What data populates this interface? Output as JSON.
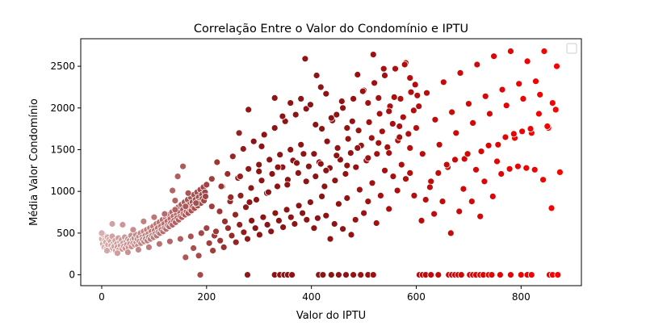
{
  "chart_data": {
    "type": "scatter",
    "title": "Correlação Entre o Valor do Condomínio e IPTU",
    "xlabel": "Valor do IPTU",
    "ylabel": "Média Valor Condomínio",
    "xlim": [
      -40,
      915
    ],
    "ylim": [
      -130,
      2830
    ],
    "xticks": [
      0,
      200,
      400,
      600,
      800
    ],
    "yticks": [
      0,
      500,
      1000,
      1500,
      2000,
      2500
    ],
    "grid": false,
    "legend": {
      "placement": "upper right",
      "entries": []
    },
    "color_scale": {
      "low": "#ffffff",
      "mid": "#8c1414",
      "high": "#ff0000",
      "marker_edge": "#ffffff"
    },
    "points": [
      [
        0,
        430
      ],
      [
        2,
        370
      ],
      [
        3,
        480
      ],
      [
        5,
        330
      ],
      [
        6,
        410
      ],
      [
        8,
        390
      ],
      [
        9,
        310
      ],
      [
        11,
        450
      ],
      [
        12,
        360
      ],
      [
        14,
        420
      ],
      [
        15,
        300
      ],
      [
        17,
        400
      ],
      [
        18,
        350
      ],
      [
        20,
        460
      ],
      [
        21,
        320
      ],
      [
        23,
        380
      ],
      [
        24,
        340
      ],
      [
        26,
        410
      ],
      [
        27,
        290
      ],
      [
        29,
        370
      ],
      [
        30,
        330
      ],
      [
        32,
        440
      ],
      [
        33,
        300
      ],
      [
        35,
        390
      ],
      [
        36,
        350
      ],
      [
        38,
        420
      ],
      [
        39,
        310
      ],
      [
        41,
        380
      ],
      [
        42,
        340
      ],
      [
        44,
        450
      ],
      [
        45,
        320
      ],
      [
        47,
        400
      ],
      [
        48,
        360
      ],
      [
        50,
        430
      ],
      [
        51,
        330
      ],
      [
        53,
        410
      ],
      [
        54,
        370
      ],
      [
        56,
        470
      ],
      [
        57,
        340
      ],
      [
        59,
        420
      ],
      [
        60,
        380
      ],
      [
        62,
        440
      ],
      [
        63,
        360
      ],
      [
        65,
        480
      ],
      [
        66,
        390
      ],
      [
        68,
        430
      ],
      [
        69,
        350
      ],
      [
        71,
        460
      ],
      [
        72,
        400
      ],
      [
        74,
        500
      ],
      [
        75,
        380
      ],
      [
        77,
        450
      ],
      [
        78,
        420
      ],
      [
        80,
        520
      ],
      [
        81,
        400
      ],
      [
        83,
        470
      ],
      [
        84,
        430
      ],
      [
        86,
        540
      ],
      [
        87,
        410
      ],
      [
        89,
        490
      ],
      [
        90,
        450
      ],
      [
        92,
        560
      ],
      [
        93,
        430
      ],
      [
        95,
        520
      ],
      [
        96,
        470
      ],
      [
        98,
        580
      ],
      [
        99,
        450
      ],
      [
        101,
        530
      ],
      [
        102,
        490
      ],
      [
        104,
        610
      ],
      [
        105,
        470
      ],
      [
        107,
        560
      ],
      [
        108,
        510
      ],
      [
        110,
        630
      ],
      [
        111,
        500
      ],
      [
        113,
        580
      ],
      [
        114,
        540
      ],
      [
        116,
        660
      ],
      [
        117,
        520
      ],
      [
        119,
        610
      ],
      [
        120,
        560
      ],
      [
        122,
        690
      ],
      [
        123,
        550
      ],
      [
        125,
        640
      ],
      [
        126,
        590
      ],
      [
        128,
        720
      ],
      [
        129,
        580
      ],
      [
        131,
        670
      ],
      [
        132,
        620
      ],
      [
        134,
        750
      ],
      [
        135,
        600
      ],
      [
        137,
        700
      ],
      [
        138,
        650
      ],
      [
        140,
        780
      ],
      [
        141,
        630
      ],
      [
        143,
        720
      ],
      [
        144,
        680
      ],
      [
        146,
        810
      ],
      [
        147,
        660
      ],
      [
        149,
        750
      ],
      [
        150,
        700
      ],
      [
        152,
        840
      ],
      [
        153,
        690
      ],
      [
        155,
        780
      ],
      [
        156,
        730
      ],
      [
        158,
        870
      ],
      [
        159,
        720
      ],
      [
        161,
        810
      ],
      [
        162,
        760
      ],
      [
        164,
        900
      ],
      [
        165,
        740
      ],
      [
        167,
        840
      ],
      [
        168,
        790
      ],
      [
        170,
        930
      ],
      [
        171,
        770
      ],
      [
        173,
        870
      ],
      [
        174,
        820
      ],
      [
        176,
        960
      ],
      [
        177,
        800
      ],
      [
        179,
        900
      ],
      [
        180,
        850
      ],
      [
        182,
        990
      ],
      [
        183,
        830
      ],
      [
        185,
        930
      ],
      [
        186,
        880
      ],
      [
        188,
        1020
      ],
      [
        189,
        860
      ],
      [
        191,
        960
      ],
      [
        192,
        910
      ],
      [
        194,
        1050
      ],
      [
        195,
        890
      ],
      [
        197,
        990
      ],
      [
        198,
        940
      ],
      [
        200,
        1080
      ],
      [
        0,
        500
      ],
      [
        10,
        290
      ],
      [
        20,
        610
      ],
      [
        30,
        260
      ],
      [
        40,
        600
      ],
      [
        50,
        270
      ],
      [
        60,
        540
      ],
      [
        70,
        300
      ],
      [
        80,
        640
      ],
      [
        90,
        330
      ],
      [
        100,
        690
      ],
      [
        110,
        370
      ],
      [
        120,
        730
      ],
      [
        130,
        400
      ],
      [
        140,
        780
      ],
      [
        150,
        430
      ],
      [
        160,
        820
      ],
      [
        170,
        460
      ],
      [
        180,
        860
      ],
      [
        190,
        500
      ],
      [
        155,
        1300
      ],
      [
        160,
        210
      ],
      [
        175,
        320
      ],
      [
        185,
        230
      ],
      [
        188,
        0
      ],
      [
        200,
        560
      ],
      [
        135,
        1010
      ],
      [
        140,
        890
      ],
      [
        145,
        1180
      ],
      [
        165,
        980
      ],
      [
        210,
        1150
      ],
      [
        215,
        470
      ],
      [
        220,
        1350
      ],
      [
        225,
        760
      ],
      [
        230,
        1060
      ],
      [
        235,
        640
      ],
      [
        240,
        1210
      ],
      [
        245,
        880
      ],
      [
        250,
        1420
      ],
      [
        255,
        720
      ],
      [
        260,
        1160
      ],
      [
        265,
        950
      ],
      [
        270,
        1510
      ],
      [
        275,
        810
      ],
      [
        280,
        1270
      ],
      [
        285,
        1040
      ],
      [
        290,
        1600
      ],
      [
        295,
        900
      ],
      [
        300,
        1320
      ],
      [
        305,
        1130
      ],
      [
        310,
        1680
      ],
      [
        315,
        980
      ],
      [
        320,
        1380
      ],
      [
        325,
        1210
      ],
      [
        330,
        1760
      ],
      [
        335,
        1060
      ],
      [
        340,
        1440
      ],
      [
        345,
        1290
      ],
      [
        350,
        1840
      ],
      [
        355,
        1140
      ],
      [
        360,
        1500
      ],
      [
        365,
        1370
      ],
      [
        370,
        1920
      ],
      [
        375,
        1220
      ],
      [
        380,
        1560
      ],
      [
        385,
        1450
      ],
      [
        390,
        1990
      ],
      [
        395,
        1300
      ],
      [
        205,
        380
      ],
      [
        212,
        290
      ],
      [
        218,
        520
      ],
      [
        226,
        410
      ],
      [
        233,
        330
      ],
      [
        241,
        560
      ],
      [
        248,
        470
      ],
      [
        256,
        390
      ],
      [
        263,
        600
      ],
      [
        271,
        510
      ],
      [
        278,
        430
      ],
      [
        286,
        650
      ],
      [
        293,
        560
      ],
      [
        301,
        480
      ],
      [
        308,
        690
      ],
      [
        316,
        600
      ],
      [
        323,
        520
      ],
      [
        331,
        740
      ],
      [
        338,
        650
      ],
      [
        346,
        570
      ],
      [
        353,
        780
      ],
      [
        361,
        690
      ],
      [
        368,
        610
      ],
      [
        376,
        830
      ],
      [
        383,
        740
      ],
      [
        391,
        660
      ],
      [
        398,
        870
      ],
      [
        262,
        1700
      ],
      [
        280,
        1980
      ],
      [
        305,
        1540
      ],
      [
        330,
        2120
      ],
      [
        345,
        1900
      ],
      [
        360,
        2060
      ],
      [
        380,
        2110
      ],
      [
        388,
        2590
      ],
      [
        398,
        2040
      ],
      [
        278,
        0
      ],
      [
        330,
        0
      ],
      [
        340,
        0
      ],
      [
        348,
        0
      ],
      [
        355,
        0
      ],
      [
        363,
        0
      ],
      [
        210,
        820
      ],
      [
        228,
        1060
      ],
      [
        246,
        930
      ],
      [
        264,
        1180
      ],
      [
        282,
        870
      ],
      [
        300,
        1240
      ],
      [
        318,
        990
      ],
      [
        336,
        1290
      ],
      [
        354,
        1080
      ],
      [
        372,
        1340
      ],
      [
        390,
        1120
      ],
      [
        405,
        1450
      ],
      [
        410,
        2390
      ],
      [
        415,
        1350
      ],
      [
        420,
        1750
      ],
      [
        425,
        1060
      ],
      [
        430,
        1600
      ],
      [
        435,
        1280
      ],
      [
        440,
        1850
      ],
      [
        445,
        1130
      ],
      [
        450,
        1520
      ],
      [
        455,
        1380
      ],
      [
        460,
        2000
      ],
      [
        465,
        1210
      ],
      [
        470,
        1630
      ],
      [
        475,
        1460
      ],
      [
        480,
        2110
      ],
      [
        485,
        1290
      ],
      [
        490,
        1730
      ],
      [
        495,
        1550
      ],
      [
        500,
        2210
      ],
      [
        505,
        1370
      ],
      [
        510,
        1830
      ],
      [
        515,
        1640
      ],
      [
        520,
        2300
      ],
      [
        525,
        1450
      ],
      [
        530,
        1930
      ],
      [
        535,
        1720
      ],
      [
        540,
        2390
      ],
      [
        545,
        1530
      ],
      [
        550,
        2020
      ],
      [
        555,
        1810
      ],
      [
        560,
        2470
      ],
      [
        565,
        1610
      ],
      [
        570,
        2110
      ],
      [
        575,
        1890
      ],
      [
        580,
        2540
      ],
      [
        585,
        1690
      ],
      [
        590,
        2190
      ],
      [
        595,
        1970
      ],
      [
        602,
        2150
      ],
      [
        408,
        1800
      ],
      [
        418,
        2250
      ],
      [
        428,
        2170
      ],
      [
        438,
        1880
      ],
      [
        448,
        1920
      ],
      [
        458,
        2080
      ],
      [
        468,
        1760
      ],
      [
        478,
        1840
      ],
      [
        488,
        2400
      ],
      [
        498,
        2200
      ],
      [
        508,
        2060
      ],
      [
        518,
        2640
      ],
      [
        528,
        2120
      ],
      [
        538,
        2470
      ],
      [
        548,
        1960
      ],
      [
        558,
        2130
      ],
      [
        568,
        1780
      ],
      [
        578,
        2520
      ],
      [
        588,
        2360
      ],
      [
        598,
        2280
      ],
      [
        405,
        560
      ],
      [
        412,
        680
      ],
      [
        420,
        940
      ],
      [
        428,
        710
      ],
      [
        436,
        430
      ],
      [
        444,
        610
      ],
      [
        452,
        850
      ],
      [
        460,
        550
      ],
      [
        468,
        920
      ],
      [
        476,
        480
      ],
      [
        484,
        660
      ],
      [
        492,
        1020
      ],
      [
        500,
        740
      ],
      [
        508,
        880
      ],
      [
        516,
        1100
      ],
      [
        524,
        620
      ],
      [
        532,
        950
      ],
      [
        540,
        1250
      ],
      [
        548,
        790
      ],
      [
        556,
        1180
      ],
      [
        564,
        1010
      ],
      [
        572,
        1320
      ],
      [
        580,
        1150
      ],
      [
        588,
        1220
      ],
      [
        596,
        950
      ],
      [
        414,
        0
      ],
      [
        422,
        0
      ],
      [
        438,
        0
      ],
      [
        452,
        0
      ],
      [
        466,
        0
      ],
      [
        480,
        0
      ],
      [
        494,
        0
      ],
      [
        508,
        0
      ],
      [
        518,
        0
      ],
      [
        408,
        1180
      ],
      [
        418,
        1330
      ],
      [
        428,
        1250
      ],
      [
        448,
        1430
      ],
      [
        468,
        1310
      ],
      [
        488,
        1520
      ],
      [
        508,
        1400
      ],
      [
        528,
        1580
      ],
      [
        548,
        1460
      ],
      [
        568,
        1650
      ],
      [
        588,
        1520
      ],
      [
        600,
        1760
      ],
      [
        605,
        2020
      ],
      [
        612,
        1450
      ],
      [
        620,
        2180
      ],
      [
        628,
        1120
      ],
      [
        636,
        1860
      ],
      [
        644,
        1560
      ],
      [
        652,
        2310
      ],
      [
        660,
        1290
      ],
      [
        668,
        1950
      ],
      [
        676,
        1700
      ],
      [
        684,
        2420
      ],
      [
        692,
        1390
      ],
      [
        700,
        2050
      ],
      [
        708,
        1820
      ],
      [
        716,
        2520
      ],
      [
        724,
        1480
      ],
      [
        732,
        2140
      ],
      [
        740,
        1930
      ],
      [
        748,
        2620
      ],
      [
        756,
        1560
      ],
      [
        764,
        2220
      ],
      [
        772,
        2030
      ],
      [
        780,
        2680
      ],
      [
        788,
        1640
      ],
      [
        796,
        2290
      ],
      [
        804,
        2110
      ],
      [
        812,
        2560
      ],
      [
        820,
        1700
      ],
      [
        828,
        2320
      ],
      [
        836,
        2160
      ],
      [
        844,
        2680
      ],
      [
        852,
        1760
      ],
      [
        860,
        2060
      ],
      [
        868,
        2500
      ],
      [
        610,
        650
      ],
      [
        618,
        900
      ],
      [
        626,
        1050
      ],
      [
        634,
        730
      ],
      [
        642,
        1220
      ],
      [
        650,
        880
      ],
      [
        658,
        1320
      ],
      [
        666,
        500
      ],
      [
        674,
        1380
      ],
      [
        682,
        760
      ],
      [
        690,
        1030
      ],
      [
        698,
        1450
      ],
      [
        706,
        880
      ],
      [
        714,
        1260
      ],
      [
        722,
        700
      ],
      [
        730,
        1120
      ],
      [
        738,
        1550
      ],
      [
        746,
        940
      ],
      [
        754,
        1360
      ],
      [
        762,
        1210
      ],
      [
        770,
        1650
      ],
      [
        778,
        1270
      ],
      [
        786,
        1690
      ],
      [
        794,
        1300
      ],
      [
        802,
        1720
      ],
      [
        810,
        1280
      ],
      [
        818,
        1750
      ],
      [
        826,
        1260
      ],
      [
        834,
        1930
      ],
      [
        842,
        1140
      ],
      [
        850,
        1780
      ],
      [
        858,
        800
      ],
      [
        866,
        1980
      ],
      [
        874,
        1230
      ],
      [
        606,
        0
      ],
      [
        612,
        0
      ],
      [
        618,
        0
      ],
      [
        628,
        0
      ],
      [
        642,
        0
      ],
      [
        662,
        0
      ],
      [
        668,
        0
      ],
      [
        674,
        0
      ],
      [
        680,
        0
      ],
      [
        686,
        0
      ],
      [
        702,
        0
      ],
      [
        708,
        0
      ],
      [
        714,
        0
      ],
      [
        722,
        0
      ],
      [
        728,
        0
      ],
      [
        738,
        0
      ],
      [
        744,
        0
      ],
      [
        760,
        0
      ],
      [
        780,
        0
      ],
      [
        800,
        0
      ],
      [
        812,
        0
      ],
      [
        820,
        0
      ],
      [
        854,
        0
      ],
      [
        860,
        0
      ],
      [
        870,
        0
      ]
    ]
  }
}
